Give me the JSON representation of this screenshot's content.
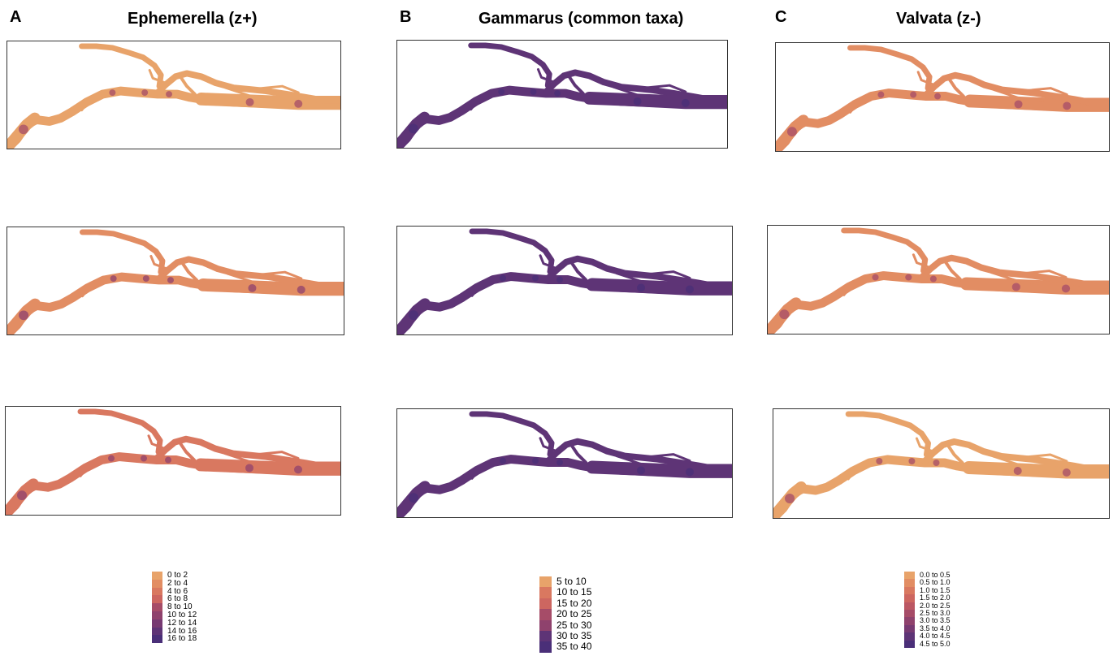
{
  "columns": [
    {
      "letter": "A",
      "title": "Ephemerella (z+)",
      "legend": [
        "0 to 2",
        "2 to 4",
        "4 to 6",
        "6 to 8",
        "8 to 10",
        "10 to 12",
        "12 to 14",
        "14 to 16",
        "16 to 18"
      ]
    },
    {
      "letter": "B",
      "title": "Gammarus (common taxa)",
      "legend": [
        "5 to 10",
        "10 to 15",
        "15 to 20",
        "20 to 25",
        "25 to 30",
        "30 to 35",
        "35 to 40"
      ]
    },
    {
      "letter": "C",
      "title": "Valvata (z-)",
      "legend": [
        "0.0 to 0.5",
        "0.5 to 1.0",
        "1.0 to 1.5",
        "1.5 to 2.0",
        "2.0 to 2.5",
        "2.5 to 3.0",
        "3.0 to 3.5",
        "3.5 to 4.0",
        "4.0 to 4.5",
        "4.5 to 5.0"
      ]
    }
  ],
  "colors": {
    "ramp": [
      "#e8a36a",
      "#e28d63",
      "#d97860",
      "#cd6660",
      "#bb5763",
      "#a64c68",
      "#8f426d",
      "#773a72",
      "#5e3476",
      "#4a2f78"
    ],
    "panel_border": "#333333"
  },
  "panel_fills": {
    "A": [
      0.05,
      0.15,
      0.2
    ],
    "B": [
      0.85,
      0.9,
      0.9
    ],
    "C": [
      0.1,
      0.1,
      0.05
    ]
  }
}
